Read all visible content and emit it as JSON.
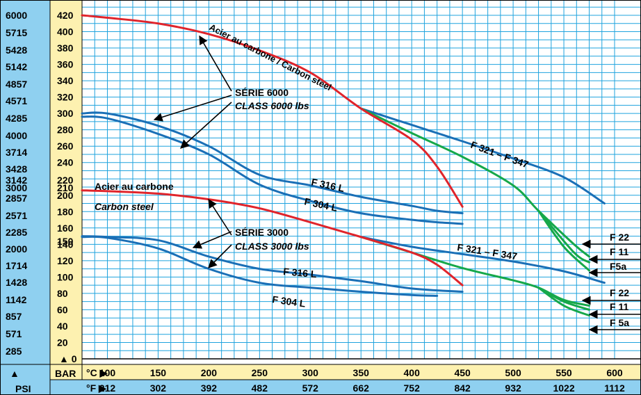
{
  "colors": {
    "grid": "#1fa3de",
    "psi_band": "#8fd0f0",
    "bar_band": "#fdf1b0",
    "carbon": "#e0242b",
    "stainless": "#1a6fb6",
    "alloy": "#16a84a",
    "frame": "#000000"
  },
  "axis_labels": {
    "psi": "PSI",
    "bar": "BAR",
    "celsius": "°C ▶",
    "fahrenheit": "°F ▶",
    "up_arrow": "▲",
    "zero_marker": "▲ 0"
  },
  "annotations": {
    "serie_6000": "SÉRIE 6000",
    "class_6000": "CLASS 6000 lbs",
    "serie_3000": "SÉRIE 3000",
    "class_3000": "CLASS 3000 lbs",
    "carbon_6000": "Acier au carbone / Carbon steel",
    "carbon_3000_fr": "Acier au carbone",
    "carbon_3000_en": "Carbon steel",
    "f321_6000": "F 321 – F 347",
    "f316_6000": "F 316 L",
    "f304_6000": "F 304 L",
    "f321_3000": "F 321 – F 347",
    "f316_3000": "F 316 L",
    "f304_3000": "F 304 L",
    "f22_6000": "F 22",
    "f11_6000": "F 11",
    "f5a_6000": "F5a",
    "f22_3000": "F 22",
    "f11_3000": "F 11",
    "f5a_3000": "F 5a"
  },
  "chart_data": {
    "type": "line",
    "xlabel": "°C / °F",
    "ylabel": "BAR / PSI",
    "xlim": [
      75,
      600
    ],
    "ylim": [
      0,
      420
    ],
    "grid": true,
    "celsius_ticks": [
      100,
      150,
      200,
      250,
      300,
      350,
      400,
      450,
      500,
      550,
      600
    ],
    "fahrenheit_ticks": [
      "212",
      "302",
      "392",
      "482",
      "572",
      "662",
      "752",
      "842",
      "932",
      "1022",
      "1112"
    ],
    "bar_ticks": [
      "420",
      "400",
      "380",
      "360",
      "340",
      "320",
      "300",
      "280",
      "260",
      "240",
      "220",
      "210",
      "200",
      "180",
      "160",
      "150",
      "140",
      "120",
      "100",
      "80",
      "60",
      "40",
      "20"
    ],
    "psi_ticks": [
      "6000",
      "5715",
      "5428",
      "5142",
      "4857",
      "4571",
      "4285",
      "4000",
      "3714",
      "3428",
      "3142",
      "3000",
      "2857",
      "2571",
      "2285",
      "2000",
      "1714",
      "1428",
      "1142",
      "857",
      "571",
      "285"
    ],
    "series": [
      {
        "name": "Acier au carbone / Carbon steel",
        "group": "SÉRIE 6000",
        "material": "carbon",
        "points": [
          [
            75,
            420
          ],
          [
            100,
            417
          ],
          [
            150,
            410
          ],
          [
            200,
            397
          ],
          [
            250,
            377
          ],
          [
            300,
            350
          ],
          [
            350,
            306
          ],
          [
            400,
            268
          ],
          [
            425,
            235
          ],
          [
            450,
            186
          ]
        ]
      },
      {
        "name": "F 321 – F 347",
        "group": "SÉRIE 6000",
        "material": "stainless",
        "points": [
          [
            350,
            306
          ],
          [
            400,
            286
          ],
          [
            450,
            266
          ],
          [
            500,
            245
          ],
          [
            550,
            222
          ],
          [
            590,
            190
          ]
        ]
      },
      {
        "name": "F 316 L",
        "group": "SÉRIE 6000",
        "material": "stainless",
        "points": [
          [
            75,
            300
          ],
          [
            100,
            300
          ],
          [
            150,
            285
          ],
          [
            200,
            260
          ],
          [
            250,
            225
          ],
          [
            300,
            212
          ],
          [
            350,
            198
          ],
          [
            400,
            187
          ],
          [
            425,
            181
          ],
          [
            450,
            178
          ]
        ]
      },
      {
        "name": "F 304 L",
        "group": "SÉRIE 6000",
        "material": "stainless",
        "points": [
          [
            75,
            296
          ],
          [
            100,
            294
          ],
          [
            150,
            275
          ],
          [
            200,
            250
          ],
          [
            250,
            213
          ],
          [
            300,
            193
          ],
          [
            350,
            178
          ],
          [
            400,
            170
          ],
          [
            425,
            167
          ],
          [
            450,
            165
          ]
        ]
      },
      {
        "name": "F 22",
        "group": "SÉRIE 6000",
        "material": "alloy",
        "points": [
          [
            350,
            306
          ],
          [
            400,
            276
          ],
          [
            450,
            247
          ],
          [
            500,
            212
          ],
          [
            525,
            181
          ],
          [
            560,
            140
          ],
          [
            575,
            125
          ]
        ]
      },
      {
        "name": "F 11",
        "group": "SÉRIE 6000",
        "material": "alloy",
        "points": [
          [
            525,
            181
          ],
          [
            560,
            130
          ],
          [
            575,
            118
          ]
        ]
      },
      {
        "name": "F5a",
        "group": "SÉRIE 6000",
        "material": "alloy",
        "points": [
          [
            525,
            181
          ],
          [
            550,
            137
          ],
          [
            575,
            108
          ]
        ]
      },
      {
        "name": "Acier au carbone / Carbon steel",
        "group": "SÉRIE 3000",
        "material": "carbon",
        "points": [
          [
            75,
            206
          ],
          [
            100,
            205
          ],
          [
            150,
            202
          ],
          [
            200,
            195
          ],
          [
            250,
            184
          ],
          [
            300,
            167
          ],
          [
            350,
            149
          ],
          [
            400,
            130
          ],
          [
            425,
            115
          ],
          [
            450,
            90
          ]
        ]
      },
      {
        "name": "F 321 – F 347",
        "group": "SÉRIE 3000",
        "material": "stainless",
        "points": [
          [
            350,
            149
          ],
          [
            400,
            137
          ],
          [
            450,
            128
          ],
          [
            500,
            119
          ],
          [
            550,
            107
          ],
          [
            590,
            93
          ]
        ]
      },
      {
        "name": "F 316 L",
        "group": "SÉRIE 3000",
        "material": "stainless",
        "points": [
          [
            75,
            150
          ],
          [
            100,
            149
          ],
          [
            150,
            145
          ],
          [
            200,
            125
          ],
          [
            250,
            110
          ],
          [
            300,
            103
          ],
          [
            350,
            95
          ],
          [
            400,
            86
          ],
          [
            450,
            82
          ]
        ]
      },
      {
        "name": "F 304 L",
        "group": "SÉRIE 3000",
        "material": "stainless",
        "points": [
          [
            75,
            149
          ],
          [
            100,
            148
          ],
          [
            150,
            135
          ],
          [
            200,
            110
          ],
          [
            250,
            93
          ],
          [
            300,
            87
          ],
          [
            350,
            82
          ],
          [
            400,
            78
          ],
          [
            425,
            77
          ]
        ]
      },
      {
        "name": "F 22",
        "group": "SÉRIE 3000",
        "material": "alloy",
        "points": [
          [
            350,
            149
          ],
          [
            400,
            130
          ],
          [
            450,
            111
          ],
          [
            500,
            96
          ],
          [
            525,
            87
          ],
          [
            550,
            72
          ],
          [
            575,
            65
          ]
        ]
      },
      {
        "name": "F 11",
        "group": "SÉRIE 3000",
        "material": "alloy",
        "points": [
          [
            525,
            87
          ],
          [
            550,
            70
          ],
          [
            575,
            60
          ]
        ]
      },
      {
        "name": "F 5a",
        "group": "SÉRIE 3000",
        "material": "alloy",
        "points": [
          [
            525,
            87
          ],
          [
            550,
            65
          ],
          [
            575,
            53
          ]
        ]
      }
    ]
  }
}
